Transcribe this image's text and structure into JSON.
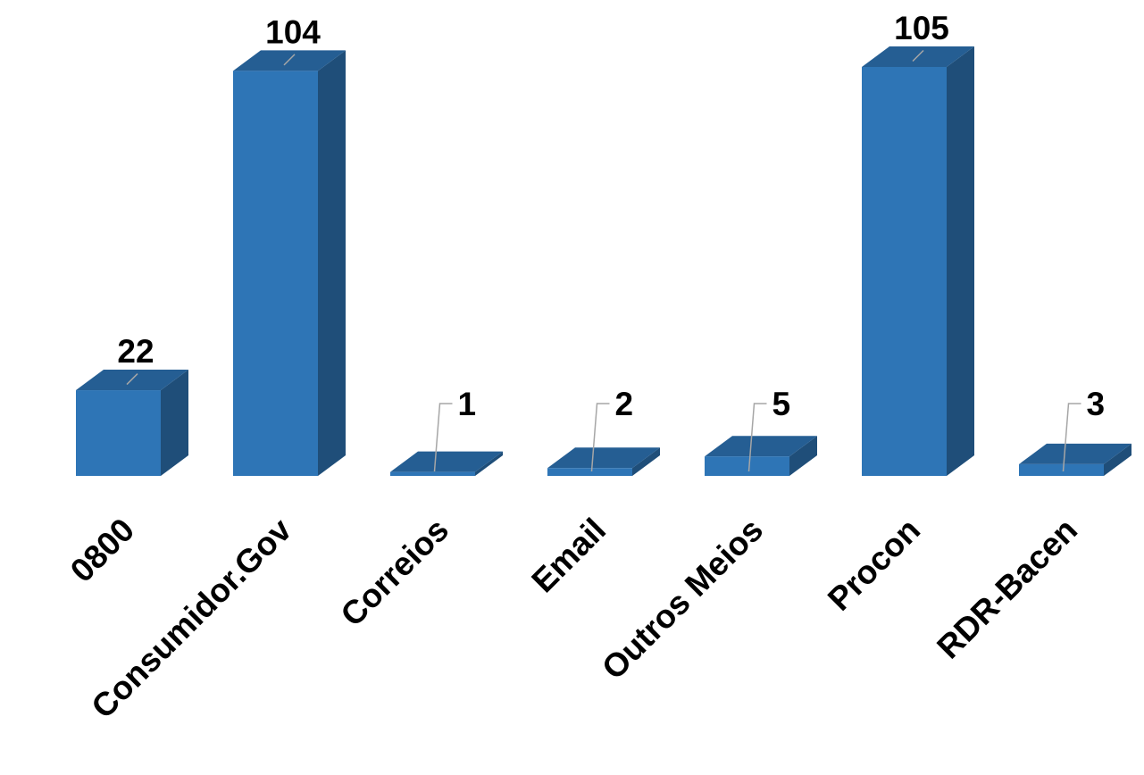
{
  "chart_data": {
    "type": "bar",
    "style": "3d-column",
    "categories": [
      "0800",
      "Consumidor.Gov",
      "Correios",
      "Email",
      "Outros Meios",
      "Procon",
      "RDR-Bacen"
    ],
    "values": [
      22,
      104,
      1,
      2,
      5,
      105,
      3
    ],
    "data_labels": [
      "22",
      "104",
      "1",
      "2",
      "5",
      "105",
      "3"
    ],
    "title": "",
    "xlabel": "",
    "ylabel": "",
    "ylim": [
      0,
      105
    ],
    "grid": false,
    "legend": "none"
  },
  "colors": {
    "bar_front": "#2e75b6",
    "bar_top": "#255e93",
    "bar_side": "#1f4e79",
    "leader_line": "#a6a6a6",
    "text": "#000000"
  }
}
